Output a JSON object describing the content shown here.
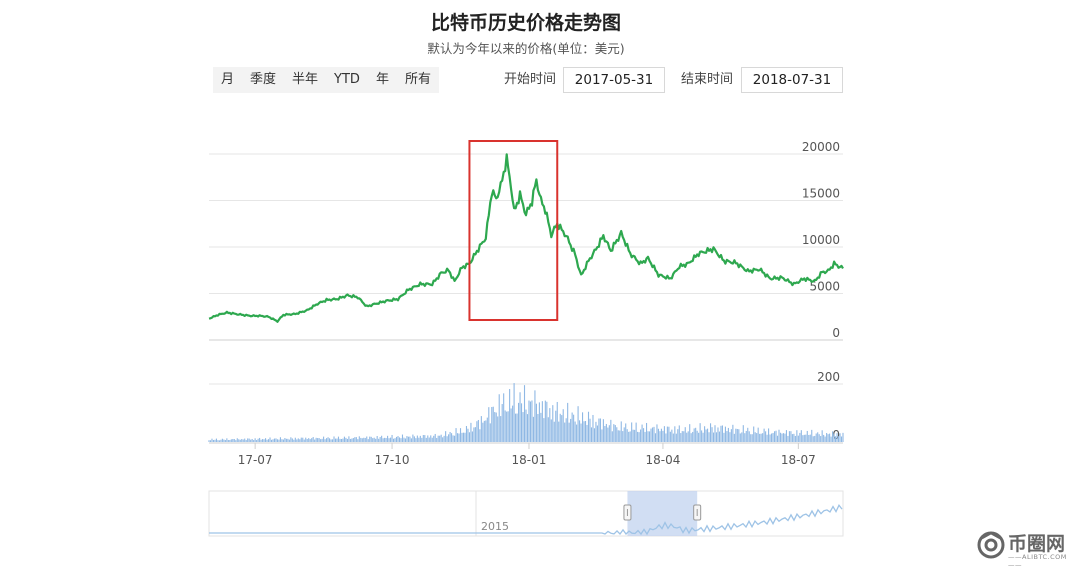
{
  "header": {
    "title": "比特币历史价格走势图",
    "subtitle": "默认为今年以来的价格(单位：美元)"
  },
  "range_buttons": [
    "月",
    "季度",
    "半年",
    "YTD",
    "年",
    "所有"
  ],
  "date_range": {
    "start_label": "开始时间",
    "start_value": "2017-05-31",
    "end_label": "结束时间",
    "end_value": "2018-07-31"
  },
  "colors": {
    "price_line": "#2ea84f",
    "volume_bar": "#8fb8e4",
    "highlight_box": "#d9332e",
    "navigator_fill": "#c2d3ef",
    "navigator_line": "#9ec3e6"
  },
  "chart_data": [
    {
      "type": "line",
      "series": [
        {
          "name": "",
          "values": []
        }
      ],
      "x_range": [
        "2017-05-31",
        "2018-07-31"
      ],
      "ylim": [
        0,
        20000
      ],
      "y_ticks": [
        "0",
        "5000",
        "10000",
        "15000",
        "20000"
      ],
      "grid": true,
      "points": [
        [
          "2017-05-31",
          2300
        ],
        [
          "2017-06-06",
          2700
        ],
        [
          "2017-06-12",
          2950
        ],
        [
          "2017-06-20",
          2750
        ],
        [
          "2017-06-28",
          2600
        ],
        [
          "2017-07-04",
          2600
        ],
        [
          "2017-07-10",
          2500
        ],
        [
          "2017-07-16",
          2000
        ],
        [
          "2017-07-20",
          2700
        ],
        [
          "2017-07-28",
          2800
        ],
        [
          "2017-08-05",
          3200
        ],
        [
          "2017-08-12",
          3900
        ],
        [
          "2017-08-18",
          4300
        ],
        [
          "2017-08-25",
          4400
        ],
        [
          "2017-09-01",
          4800
        ],
        [
          "2017-09-08",
          4600
        ],
        [
          "2017-09-14",
          3600
        ],
        [
          "2017-09-20",
          3900
        ],
        [
          "2017-09-27",
          4200
        ],
        [
          "2017-10-05",
          4400
        ],
        [
          "2017-10-12",
          5400
        ],
        [
          "2017-10-20",
          6000
        ],
        [
          "2017-10-28",
          6000
        ],
        [
          "2017-11-03",
          7200
        ],
        [
          "2017-11-08",
          7500
        ],
        [
          "2017-11-12",
          6300
        ],
        [
          "2017-11-17",
          7800
        ],
        [
          "2017-11-22",
          8200
        ],
        [
          "2017-11-28",
          9800
        ],
        [
          "2017-12-03",
          11000
        ],
        [
          "2017-12-07",
          16000
        ],
        [
          "2017-12-10",
          15200
        ],
        [
          "2017-12-13",
          16500
        ],
        [
          "2017-12-17",
          19500
        ],
        [
          "2017-12-20",
          16500
        ],
        [
          "2017-12-22",
          13800
        ],
        [
          "2017-12-26",
          15600
        ],
        [
          "2017-12-30",
          13500
        ],
        [
          "2018-01-03",
          14900
        ],
        [
          "2018-01-06",
          17200
        ],
        [
          "2018-01-09",
          15000
        ],
        [
          "2018-01-12",
          14000
        ],
        [
          "2018-01-16",
          11300
        ],
        [
          "2018-01-20",
          12500
        ],
        [
          "2018-01-26",
          11200
        ],
        [
          "2018-02-01",
          9200
        ],
        [
          "2018-02-05",
          6900
        ],
        [
          "2018-02-10",
          8500
        ],
        [
          "2018-02-16",
          10000
        ],
        [
          "2018-02-20",
          11200
        ],
        [
          "2018-02-25",
          9600
        ],
        [
          "2018-03-04",
          11500
        ],
        [
          "2018-03-10",
          9300
        ],
        [
          "2018-03-17",
          8200
        ],
        [
          "2018-03-22",
          8800
        ],
        [
          "2018-03-29",
          7000
        ],
        [
          "2018-04-06",
          6600
        ],
        [
          "2018-04-12",
          7900
        ],
        [
          "2018-04-18",
          8200
        ],
        [
          "2018-04-25",
          9300
        ],
        [
          "2018-05-05",
          9800
        ],
        [
          "2018-05-12",
          8500
        ],
        [
          "2018-05-20",
          8300
        ],
        [
          "2018-05-28",
          7400
        ],
        [
          "2018-06-05",
          7600
        ],
        [
          "2018-06-12",
          6600
        ],
        [
          "2018-06-20",
          6700
        ],
        [
          "2018-06-28",
          6000
        ],
        [
          "2018-07-05",
          6600
        ],
        [
          "2018-07-12",
          6300
        ],
        [
          "2018-07-17",
          7300
        ],
        [
          "2018-07-21",
          7400
        ],
        [
          "2018-07-25",
          8200
        ],
        [
          "2018-07-31",
          7700
        ]
      ],
      "highlight": {
        "from": "2017-11-22",
        "to": "2018-01-20"
      }
    },
    {
      "type": "bar",
      "ylim": [
        0,
        200
      ],
      "y_ticks": [
        "200",
        "0"
      ],
      "x_ticks": [
        "17-07",
        "17-10",
        "18-01",
        "18-04",
        "18-07"
      ],
      "volume_profile": [
        [
          "2017-05-31",
          12
        ],
        [
          "2017-09-15",
          22
        ],
        [
          "2017-11-01",
          30
        ],
        [
          "2017-11-20",
          60
        ],
        [
          "2017-12-01",
          105
        ],
        [
          "2017-12-10",
          170
        ],
        [
          "2017-12-22",
          210
        ],
        [
          "2018-01-05",
          190
        ],
        [
          "2018-01-18",
          150
        ],
        [
          "2018-02-06",
          120
        ],
        [
          "2018-03-01",
          75
        ],
        [
          "2018-04-15",
          60
        ],
        [
          "2018-05-05",
          70
        ],
        [
          "2018-06-15",
          48
        ],
        [
          "2018-07-31",
          38
        ]
      ]
    },
    {
      "type": "area",
      "navigator_label": "2015",
      "window": {
        "from": 0.66,
        "to": 0.77
      }
    }
  ],
  "watermark": {
    "text": "币圈网",
    "sub": "——ALIBTC.COM——"
  }
}
